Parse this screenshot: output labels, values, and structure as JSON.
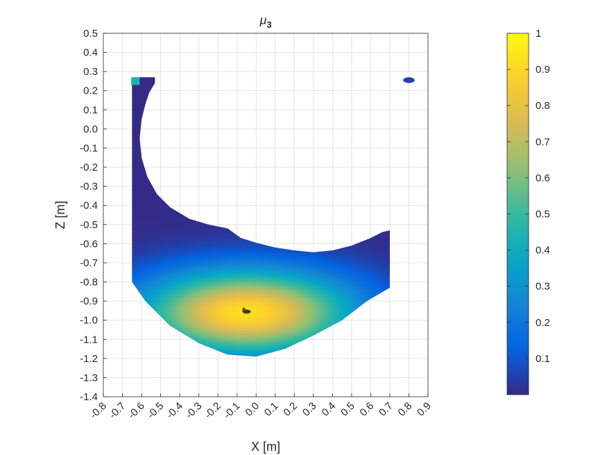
{
  "chart_data": {
    "type": "scatter",
    "title": "μ",
    "title_subscript": "3",
    "xlabel": "X [m]",
    "ylabel": "Z [m]",
    "xlim": [
      -0.8,
      0.9
    ],
    "ylim": [
      -1.4,
      0.5
    ],
    "xticks": [
      -0.8,
      -0.7,
      -0.6,
      -0.5,
      -0.4,
      -0.3,
      -0.2,
      -0.1,
      0.0,
      0.1,
      0.2,
      0.3,
      0.4,
      0.5,
      0.6,
      0.7,
      0.8,
      0.9
    ],
    "xtick_labels": [
      "-0.8",
      "-0.7",
      "-0.6",
      "-0.5",
      "-0.4",
      "-0.3",
      "-0.2",
      "-0.1",
      "0.0",
      "0.1",
      "0.2",
      "0.3",
      "0.4",
      "0.5",
      "0.6",
      "0.7",
      "0.8",
      "0.9"
    ],
    "yticks": [
      0.5,
      0.4,
      0.3,
      0.2,
      0.1,
      0.0,
      -0.1,
      -0.2,
      -0.3,
      -0.4,
      -0.5,
      -0.6,
      -0.7,
      -0.8,
      -0.9,
      -1.0,
      -1.1,
      -1.2,
      -1.3,
      -1.4
    ],
    "ytick_labels": [
      "0.5",
      "0.4",
      "0.3",
      "0.2",
      "0.1",
      "0.0",
      "-0.1",
      "-0.2",
      "-0.3",
      "-0.4",
      "-0.5",
      "-0.6",
      "-0.7",
      "-0.8",
      "-0.9",
      "-1.0",
      "-1.1",
      "-1.2",
      "-1.3",
      "-1.4"
    ],
    "grid": true,
    "colormap": "parula",
    "colorbar": {
      "range": [
        0,
        1
      ],
      "ticks": [
        0.1,
        0.2,
        0.3,
        0.4,
        0.5,
        0.6,
        0.7,
        0.8,
        0.9,
        1
      ],
      "tick_labels": [
        "0.1",
        "0.2",
        "0.3",
        "0.4",
        "0.5",
        "0.6",
        "0.7",
        "0.8",
        "0.9",
        "1"
      ]
    },
    "field": {
      "peak_x": -0.05,
      "peak_z": -0.96,
      "peak_value": 0.92,
      "spread_x": 0.55,
      "spread_z": 0.22
    },
    "region": {
      "outer_boundary": [
        [
          -0.65,
          0.27
        ],
        [
          -0.65,
          -0.8
        ],
        [
          -0.58,
          -0.9
        ],
        [
          -0.45,
          -1.03
        ],
        [
          -0.3,
          -1.12
        ],
        [
          -0.15,
          -1.18
        ],
        [
          0.0,
          -1.19
        ],
        [
          0.15,
          -1.15
        ],
        [
          0.3,
          -1.08
        ],
        [
          0.45,
          -1.0
        ],
        [
          0.58,
          -0.9
        ],
        [
          0.7,
          -0.83
        ],
        [
          0.7,
          -0.53
        ],
        [
          0.66,
          -0.54
        ],
        [
          0.6,
          -0.57
        ],
        [
          0.5,
          -0.61
        ],
        [
          0.4,
          -0.635
        ],
        [
          0.3,
          -0.645
        ],
        [
          0.2,
          -0.635
        ],
        [
          0.1,
          -0.62
        ],
        [
          0.0,
          -0.595
        ],
        [
          -0.08,
          -0.57
        ],
        [
          -0.15,
          -0.52
        ],
        [
          -0.25,
          -0.5
        ],
        [
          -0.35,
          -0.47
        ],
        [
          -0.45,
          -0.41
        ],
        [
          -0.52,
          -0.34
        ],
        [
          -0.57,
          -0.25
        ],
        [
          -0.6,
          -0.15
        ],
        [
          -0.61,
          -0.05
        ],
        [
          -0.6,
          0.05
        ],
        [
          -0.58,
          0.13
        ],
        [
          -0.56,
          0.19
        ],
        [
          -0.53,
          0.24
        ],
        [
          -0.53,
          0.27
        ],
        [
          -0.6,
          0.27
        ]
      ],
      "islands": [
        {
          "x": [
            0.77,
            0.83
          ],
          "z": [
            0.24,
            0.27
          ],
          "value": 0.05
        }
      ],
      "edge_cap": {
        "x": [
          -0.655,
          -0.61
        ],
        "z": [
          0.23,
          0.27
        ],
        "value": 0.45
      }
    },
    "defect_marker": {
      "x": -0.05,
      "z": -0.955
    }
  },
  "colors": {
    "axis": "#262626",
    "grid": "#e3e3e3",
    "parula": [
      "#352a87",
      "#0363e1",
      "#1485d4",
      "#06a7c6",
      "#38b99e",
      "#92bf73",
      "#d9ba56",
      "#fcce2e",
      "#f9fb0e"
    ]
  }
}
